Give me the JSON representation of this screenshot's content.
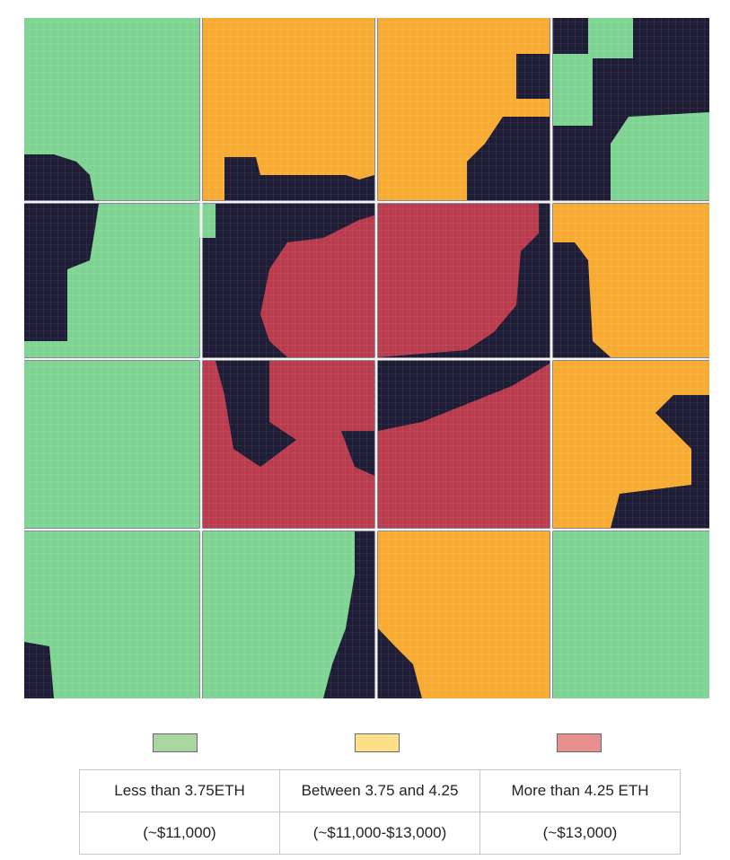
{
  "map": {
    "colors": {
      "low": "#7fd493",
      "mid": "#f8ab32",
      "high": "#b93b4e",
      "empty": "#1f1d35",
      "divider": "#f4f4f4"
    }
  },
  "legend": [
    {
      "color": "#a8d5a0",
      "label": "Less than 3.75ETH",
      "usd": "(~$11,000)"
    },
    {
      "color": "#fde08a",
      "label": "Between 3.75 and 4.25",
      "usd": "(~$11,000-$13,000)"
    },
    {
      "color": "#e8908f",
      "label": "More than 4.25 ETH",
      "usd": "(~$13,000)"
    }
  ]
}
